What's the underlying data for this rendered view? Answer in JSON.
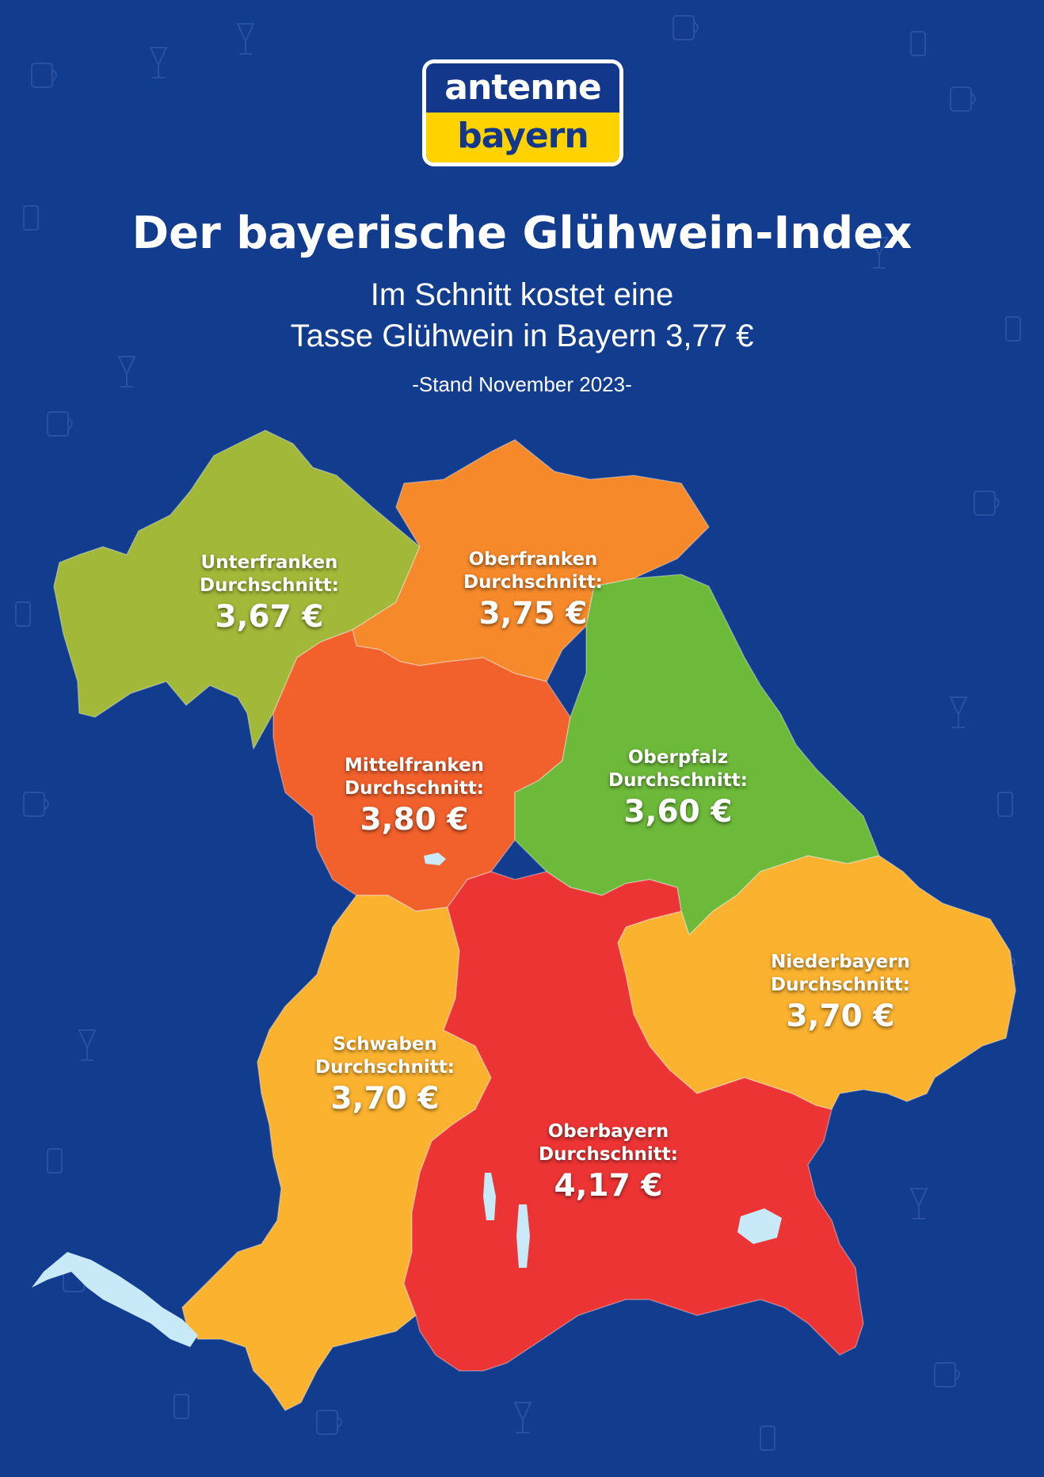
{
  "logo": {
    "line1": "antenne",
    "line2": "bayern"
  },
  "title": "Der bayerische Glühwein-Index",
  "subtitle_line1": "Im Schnitt kostet eine",
  "subtitle_line2": "Tasse Glühwein in Bayern 3,77 €",
  "stand": "-Stand November 2023-",
  "colors": {
    "background": "#123d8f",
    "unterfranken": "#a2b838",
    "oberfranken": "#f6892a",
    "mittelfranken": "#f2602c",
    "oberpfalz": "#6db93a",
    "niederbayern": "#fbb22f",
    "schwaben": "#fbb22f",
    "oberbayern": "#ec3434",
    "lakes": "#c7e9f8"
  },
  "regions": [
    {
      "name": "Unterfranken",
      "label": "Durchschnitt:",
      "price": "3,67 €",
      "value": 3.67
    },
    {
      "name": "Oberfranken",
      "label": "Durchschnitt:",
      "price": "3,75 €",
      "value": 3.75
    },
    {
      "name": "Mittelfranken",
      "label": "Durchschnitt:",
      "price": "3,80 €",
      "value": 3.8
    },
    {
      "name": "Oberpfalz",
      "label": "Durchschnitt:",
      "price": "3,60 €",
      "value": 3.6
    },
    {
      "name": "Niederbayern",
      "label": "Durchschnitt:",
      "price": "3,70 €",
      "value": 3.7
    },
    {
      "name": "Schwaben",
      "label": "Durchschnitt:",
      "price": "3,70 €",
      "value": 3.7
    },
    {
      "name": "Oberbayern",
      "label": "Durchschnitt:",
      "price": "4,17 €",
      "value": 4.17
    }
  ]
}
